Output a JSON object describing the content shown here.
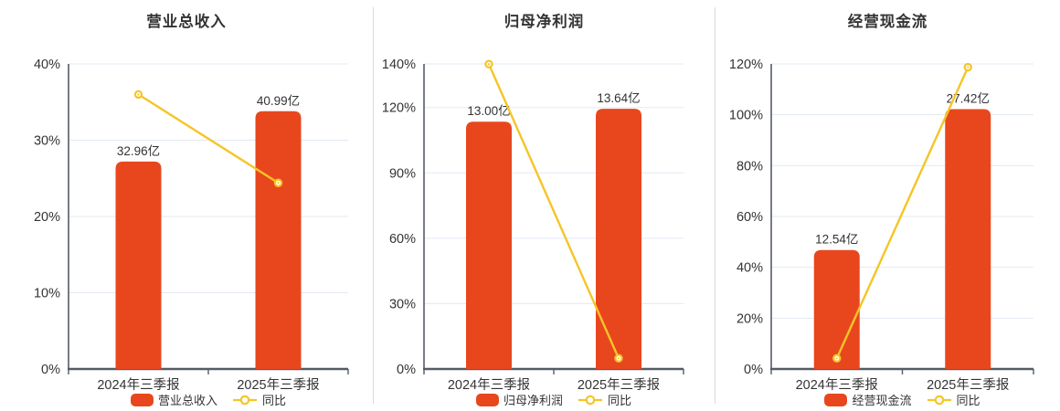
{
  "colors": {
    "bar": "#e8471e",
    "line": "#f5c526",
    "grid": "#e3e9f3",
    "axis": "#555b65",
    "text": "#333333",
    "divider": "#d8dadd",
    "marker_fill": "#ffffff"
  },
  "chart_data": [
    {
      "type": "bar",
      "title": "营业总收入",
      "categories": [
        "2024年三季报",
        "2025年三季报"
      ],
      "bar_series": {
        "name": "营业总收入",
        "unit": "亿",
        "values": [
          32.96,
          40.99
        ],
        "labels": [
          "32.96亿",
          "40.99亿"
        ],
        "plotted_pct": [
          27.2,
          33.8
        ]
      },
      "line_series": {
        "name": "同比",
        "values_pct": [
          36.0,
          24.4
        ]
      },
      "y_axis": {
        "ticks": [
          "0%",
          "10%",
          "20%",
          "30%",
          "40%"
        ],
        "tick_values": [
          0,
          10,
          20,
          30,
          40
        ],
        "max": 40
      },
      "legend": [
        "营业总收入",
        "同比"
      ],
      "legend_position": "bottom",
      "grid": true
    },
    {
      "type": "bar",
      "title": "归母净利润",
      "categories": [
        "2024年三季报",
        "2025年三季报"
      ],
      "bar_series": {
        "name": "归母净利润",
        "unit": "亿",
        "values": [
          13.0,
          13.64
        ],
        "labels": [
          "13.00亿",
          "13.64亿"
        ],
        "plotted_pct": [
          113.5,
          119.4
        ]
      },
      "line_series": {
        "name": "同比",
        "values_pct": [
          139.9,
          4.9
        ]
      },
      "y_axis": {
        "ticks": [
          "0%",
          "30%",
          "60%",
          "90%",
          "120%",
          "140%"
        ],
        "tick_values": [
          0,
          30,
          60,
          90,
          120,
          140
        ],
        "max": 140
      },
      "legend": [
        "归母净利润",
        "同比"
      ],
      "legend_position": "bottom",
      "grid": true
    },
    {
      "type": "bar",
      "title": "经营现金流",
      "categories": [
        "2024年三季报",
        "2025年三季报"
      ],
      "bar_series": {
        "name": "经营现金流",
        "unit": "亿",
        "values": [
          12.54,
          27.42
        ],
        "labels": [
          "12.54亿",
          "27.42亿"
        ],
        "plotted_pct": [
          46.8,
          102.2
        ]
      },
      "line_series": {
        "name": "同比",
        "values_pct": [
          4.2,
          118.7
        ]
      },
      "y_axis": {
        "ticks": [
          "0%",
          "20%",
          "40%",
          "60%",
          "80%",
          "100%",
          "120%"
        ],
        "tick_values": [
          0,
          20,
          40,
          60,
          80,
          100,
          120
        ],
        "max": 120
      },
      "legend": [
        "经营现金流",
        "同比"
      ],
      "legend_position": "bottom",
      "grid": true
    }
  ]
}
